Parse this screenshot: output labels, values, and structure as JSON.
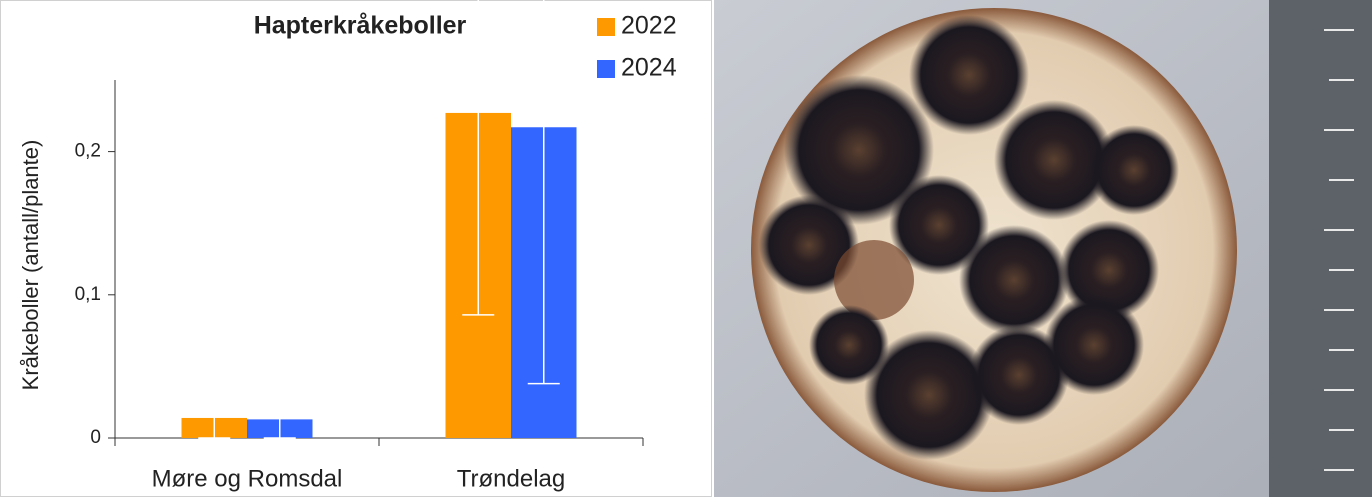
{
  "chart_data": {
    "type": "bar",
    "title": "Hapterkråkeboller",
    "y_label": "Kråkeboller  (antall/plante)",
    "categories": [
      "Møre og Romsdal",
      "Trøndelag"
    ],
    "series": [
      {
        "name": "2022",
        "color": "#ff9900",
        "values": [
          0.014,
          0.227
        ],
        "errors": [
          0.014,
          0.141
        ]
      },
      {
        "name": "2024",
        "color": "#3366ff",
        "values": [
          0.013,
          0.217
        ],
        "errors": [
          0.013,
          0.179
        ]
      }
    ],
    "ylim": [
      0,
      0.25
    ],
    "yticks": [
      0,
      {
        "value": 0.1,
        "label": "0,1"
      },
      {
        "value": 0.2,
        "label": "0,2"
      }
    ],
    "error_bar_color": "#ffffff"
  }
}
